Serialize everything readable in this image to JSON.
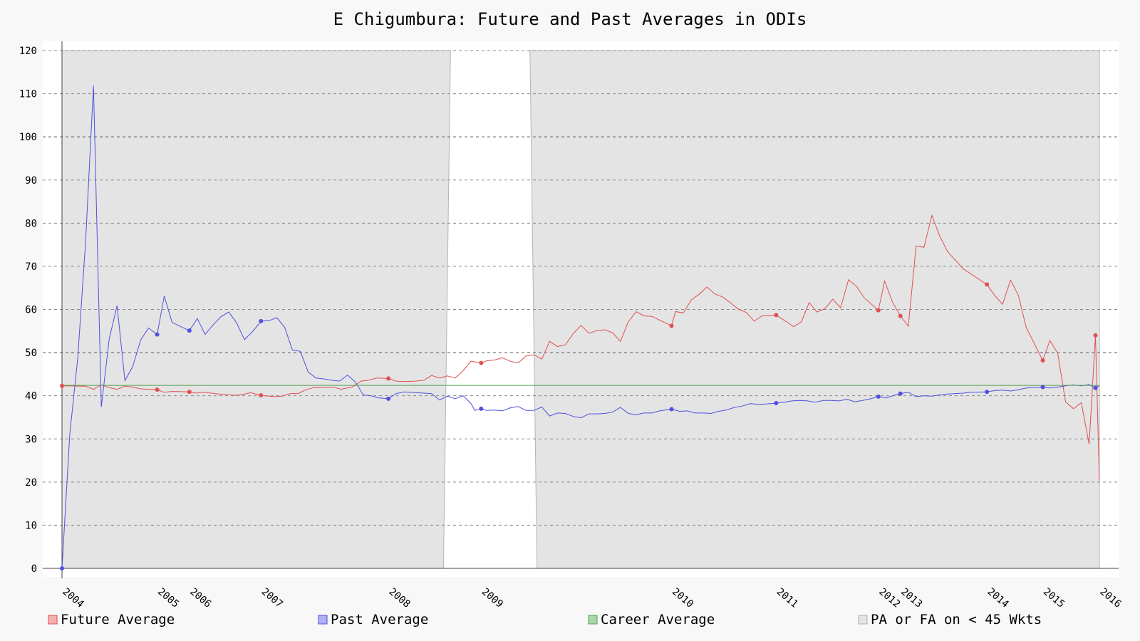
{
  "chart_data": {
    "type": "line",
    "title": "E Chigumbura: Future and Past Averages in ODIs",
    "xlabel": "",
    "ylabel": "",
    "ylim": [
      0,
      120
    ],
    "yticks": [
      0,
      10,
      20,
      30,
      40,
      50,
      60,
      70,
      80,
      90,
      100,
      110,
      120
    ],
    "grid": true,
    "legend_position": "bottom",
    "x_ticks": [
      {
        "label": "2004",
        "x": 2004.0
      },
      {
        "label": "2005",
        "x": 2005.21
      },
      {
        "label": "2006",
        "x": 2005.62
      },
      {
        "label": "2007",
        "x": 2006.53
      },
      {
        "label": "2008",
        "x": 2008.15
      },
      {
        "label": "2009",
        "x": 2009.33
      },
      {
        "label": "2010",
        "x": 2011.75
      },
      {
        "label": "2011",
        "x": 2013.08
      },
      {
        "label": "2012",
        "x": 2014.38
      },
      {
        "label": "2013",
        "x": 2014.66
      },
      {
        "label": "2014",
        "x": 2015.76
      },
      {
        "label": "2015",
        "x": 2016.47
      },
      {
        "label": "2016",
        "x": 2017.19
      }
    ],
    "x_range": [
      2004.0,
      2017.19
    ],
    "shaded_regions": [
      {
        "x0": 2004.0,
        "x1": 2008.94,
        "x1_bottom": 2008.85
      },
      {
        "x0": 2009.95,
        "x0_bottom": 2010.04,
        "x1": 2017.19
      }
    ],
    "series": [
      {
        "name": "Future Average",
        "color": "#e05050",
        "points": [
          [
            2004.0,
            42.3
          ],
          [
            2004.3,
            42.2
          ],
          [
            2004.4,
            41.5
          ],
          [
            2004.5,
            42.5
          ],
          [
            2004.6,
            41.9
          ],
          [
            2004.7,
            41.5
          ],
          [
            2004.8,
            42.2
          ],
          [
            2004.9,
            42.0
          ],
          [
            2005.0,
            41.6
          ],
          [
            2005.21,
            41.4
          ],
          [
            2005.3,
            40.8
          ],
          [
            2005.4,
            41.0
          ],
          [
            2005.62,
            40.9
          ],
          [
            2005.7,
            40.6
          ],
          [
            2005.8,
            40.8
          ],
          [
            2006.0,
            40.4
          ],
          [
            2006.2,
            40.1
          ],
          [
            2006.3,
            40.3
          ],
          [
            2006.4,
            40.7
          ],
          [
            2006.53,
            40.1
          ],
          [
            2006.7,
            39.8
          ],
          [
            2006.8,
            39.9
          ],
          [
            2006.9,
            40.5
          ],
          [
            2007.0,
            40.5
          ],
          [
            2007.1,
            41.4
          ],
          [
            2007.2,
            41.9
          ],
          [
            2007.3,
            41.9
          ],
          [
            2007.45,
            42.0
          ],
          [
            2007.55,
            41.5
          ],
          [
            2007.7,
            42.1
          ],
          [
            2007.8,
            43.4
          ],
          [
            2007.9,
            43.6
          ],
          [
            2008.0,
            44.1
          ],
          [
            2008.15,
            44.0
          ],
          [
            2008.25,
            43.4
          ],
          [
            2008.35,
            43.3
          ],
          [
            2008.5,
            43.4
          ],
          [
            2008.6,
            43.6
          ],
          [
            2008.7,
            44.7
          ],
          [
            2008.8,
            44.1
          ],
          [
            2008.9,
            44.6
          ],
          [
            2009.0,
            44.1
          ],
          [
            2009.1,
            45.8
          ],
          [
            2009.2,
            48.0
          ],
          [
            2009.33,
            47.6
          ],
          [
            2009.4,
            48.1
          ],
          [
            2009.5,
            48.3
          ],
          [
            2009.6,
            48.8
          ],
          [
            2009.7,
            48.0
          ],
          [
            2009.8,
            47.6
          ],
          [
            2009.9,
            49.2
          ],
          [
            2010.0,
            49.5
          ],
          [
            2010.1,
            48.5
          ],
          [
            2010.2,
            52.6
          ],
          [
            2010.3,
            51.4
          ],
          [
            2010.4,
            51.8
          ],
          [
            2010.5,
            54.4
          ],
          [
            2010.6,
            56.3
          ],
          [
            2010.7,
            54.5
          ],
          [
            2010.8,
            55.1
          ],
          [
            2010.9,
            55.3
          ],
          [
            2011.0,
            54.6
          ],
          [
            2011.1,
            52.6
          ],
          [
            2011.2,
            57.1
          ],
          [
            2011.3,
            59.5
          ],
          [
            2011.4,
            58.5
          ],
          [
            2011.5,
            58.4
          ],
          [
            2011.6,
            57.5
          ],
          [
            2011.75,
            56.2
          ],
          [
            2011.8,
            59.5
          ],
          [
            2011.9,
            59.2
          ],
          [
            2012.0,
            62.2
          ],
          [
            2012.1,
            63.5
          ],
          [
            2012.2,
            65.2
          ],
          [
            2012.3,
            63.6
          ],
          [
            2012.4,
            62.9
          ],
          [
            2012.5,
            61.5
          ],
          [
            2012.6,
            60.1
          ],
          [
            2012.7,
            59.3
          ],
          [
            2012.8,
            57.3
          ],
          [
            2012.9,
            58.5
          ],
          [
            2013.08,
            58.7
          ],
          [
            2013.2,
            57.3
          ],
          [
            2013.3,
            56.0
          ],
          [
            2013.4,
            57.1
          ],
          [
            2013.5,
            61.6
          ],
          [
            2013.6,
            59.4
          ],
          [
            2013.7,
            60.2
          ],
          [
            2013.8,
            62.4
          ],
          [
            2013.9,
            60.4
          ],
          [
            2014.0,
            66.9
          ],
          [
            2014.1,
            65.4
          ],
          [
            2014.2,
            62.7
          ],
          [
            2014.38,
            59.8
          ],
          [
            2014.46,
            66.6
          ],
          [
            2014.56,
            61.7
          ],
          [
            2014.66,
            58.5
          ],
          [
            2014.76,
            56.1
          ],
          [
            2014.86,
            74.7
          ],
          [
            2014.96,
            74.4
          ],
          [
            2015.06,
            81.8
          ],
          [
            2015.16,
            77.0
          ],
          [
            2015.26,
            73.4
          ],
          [
            2015.46,
            69.4
          ],
          [
            2015.76,
            65.8
          ],
          [
            2015.86,
            63.2
          ],
          [
            2015.96,
            61.2
          ],
          [
            2016.06,
            66.8
          ],
          [
            2016.16,
            63.3
          ],
          [
            2016.26,
            55.8
          ],
          [
            2016.47,
            48.2
          ],
          [
            2016.56,
            52.8
          ],
          [
            2016.66,
            49.9
          ],
          [
            2016.76,
            38.6
          ],
          [
            2016.86,
            37.0
          ],
          [
            2016.96,
            38.4
          ],
          [
            2017.06,
            28.8
          ],
          [
            2017.14,
            54.0
          ],
          [
            2017.19,
            20.3
          ]
        ],
        "markers": [
          [
            2004.0,
            42.3
          ],
          [
            2005.21,
            41.4
          ],
          [
            2005.62,
            40.9
          ],
          [
            2006.53,
            40.1
          ],
          [
            2008.15,
            44.0
          ],
          [
            2009.33,
            47.6
          ],
          [
            2011.75,
            56.2
          ],
          [
            2013.08,
            58.7
          ],
          [
            2014.38,
            59.8
          ],
          [
            2014.66,
            58.5
          ],
          [
            2015.76,
            65.8
          ],
          [
            2016.47,
            48.2
          ],
          [
            2017.14,
            54.0
          ]
        ]
      },
      {
        "name": "Past Average",
        "color": "#5050e0",
        "points": [
          [
            2004.0,
            0.0
          ],
          [
            2004.1,
            31.2
          ],
          [
            2004.2,
            48.7
          ],
          [
            2004.3,
            75.6
          ],
          [
            2004.4,
            111.9
          ],
          [
            2004.5,
            37.4
          ],
          [
            2004.6,
            53.1
          ],
          [
            2004.7,
            60.9
          ],
          [
            2004.8,
            43.5
          ],
          [
            2004.9,
            46.8
          ],
          [
            2005.0,
            52.9
          ],
          [
            2005.1,
            55.7
          ],
          [
            2005.21,
            54.2
          ],
          [
            2005.3,
            63.1
          ],
          [
            2005.4,
            57.0
          ],
          [
            2005.5,
            56.1
          ],
          [
            2005.62,
            55.1
          ],
          [
            2005.72,
            57.9
          ],
          [
            2005.82,
            54.2
          ],
          [
            2005.92,
            56.4
          ],
          [
            2006.02,
            58.3
          ],
          [
            2006.12,
            59.4
          ],
          [
            2006.22,
            56.9
          ],
          [
            2006.32,
            53.0
          ],
          [
            2006.42,
            54.8
          ],
          [
            2006.53,
            57.3
          ],
          [
            2006.63,
            57.4
          ],
          [
            2006.73,
            58.1
          ],
          [
            2006.83,
            55.9
          ],
          [
            2006.93,
            50.6
          ],
          [
            2007.03,
            50.3
          ],
          [
            2007.13,
            45.5
          ],
          [
            2007.23,
            44.1
          ],
          [
            2007.33,
            43.9
          ],
          [
            2007.43,
            43.6
          ],
          [
            2007.53,
            43.4
          ],
          [
            2007.63,
            44.8
          ],
          [
            2007.73,
            43.2
          ],
          [
            2007.83,
            40.2
          ],
          [
            2007.93,
            40.0
          ],
          [
            2008.03,
            39.5
          ],
          [
            2008.15,
            39.3
          ],
          [
            2008.25,
            40.5
          ],
          [
            2008.35,
            40.9
          ],
          [
            2008.5,
            40.7
          ],
          [
            2008.7,
            40.5
          ],
          [
            2008.8,
            39.0
          ],
          [
            2008.9,
            39.9
          ],
          [
            2009.0,
            39.3
          ],
          [
            2009.1,
            40.0
          ],
          [
            2009.2,
            38.2
          ],
          [
            2009.25,
            36.6
          ],
          [
            2009.33,
            37.0
          ],
          [
            2009.4,
            36.6
          ],
          [
            2009.5,
            36.7
          ],
          [
            2009.6,
            36.5
          ],
          [
            2009.7,
            37.2
          ],
          [
            2009.8,
            37.5
          ],
          [
            2009.9,
            36.6
          ],
          [
            2010.0,
            36.6
          ],
          [
            2010.1,
            37.4
          ],
          [
            2010.2,
            35.3
          ],
          [
            2010.3,
            36.0
          ],
          [
            2010.4,
            35.9
          ],
          [
            2010.5,
            35.2
          ],
          [
            2010.6,
            34.9
          ],
          [
            2010.7,
            35.8
          ],
          [
            2010.8,
            35.8
          ],
          [
            2010.9,
            35.9
          ],
          [
            2011.0,
            36.2
          ],
          [
            2011.1,
            37.3
          ],
          [
            2011.2,
            35.9
          ],
          [
            2011.3,
            35.6
          ],
          [
            2011.4,
            36.0
          ],
          [
            2011.5,
            36.0
          ],
          [
            2011.6,
            36.5
          ],
          [
            2011.75,
            36.9
          ],
          [
            2011.85,
            36.4
          ],
          [
            2011.95,
            36.5
          ],
          [
            2012.05,
            36.0
          ],
          [
            2012.15,
            36.0
          ],
          [
            2012.25,
            35.9
          ],
          [
            2012.35,
            36.4
          ],
          [
            2012.45,
            36.7
          ],
          [
            2012.55,
            37.3
          ],
          [
            2012.65,
            37.6
          ],
          [
            2012.75,
            38.2
          ],
          [
            2012.85,
            38.0
          ],
          [
            2012.95,
            38.1
          ],
          [
            2013.08,
            38.3
          ],
          [
            2013.18,
            38.5
          ],
          [
            2013.28,
            38.8
          ],
          [
            2013.38,
            38.9
          ],
          [
            2013.48,
            38.8
          ],
          [
            2013.58,
            38.5
          ],
          [
            2013.68,
            38.9
          ],
          [
            2013.78,
            38.9
          ],
          [
            2013.88,
            38.8
          ],
          [
            2013.98,
            39.2
          ],
          [
            2014.08,
            38.6
          ],
          [
            2014.18,
            38.9
          ],
          [
            2014.28,
            39.3
          ],
          [
            2014.38,
            39.8
          ],
          [
            2014.48,
            39.5
          ],
          [
            2014.58,
            40.1
          ],
          [
            2014.66,
            40.5
          ],
          [
            2014.76,
            40.8
          ],
          [
            2014.86,
            39.8
          ],
          [
            2014.96,
            40.0
          ],
          [
            2015.06,
            39.9
          ],
          [
            2015.16,
            40.2
          ],
          [
            2015.26,
            40.4
          ],
          [
            2015.46,
            40.6
          ],
          [
            2015.56,
            40.8
          ],
          [
            2015.76,
            40.9
          ],
          [
            2015.86,
            41.2
          ],
          [
            2015.96,
            41.3
          ],
          [
            2016.06,
            41.1
          ],
          [
            2016.16,
            41.4
          ],
          [
            2016.26,
            41.8
          ],
          [
            2016.47,
            42.0
          ],
          [
            2016.56,
            41.8
          ],
          [
            2016.66,
            42.0
          ],
          [
            2016.76,
            42.3
          ],
          [
            2016.86,
            42.5
          ],
          [
            2016.96,
            42.3
          ],
          [
            2017.06,
            42.6
          ],
          [
            2017.14,
            41.8
          ],
          [
            2017.19,
            42.3
          ]
        ],
        "markers": [
          [
            2004.0,
            0.0
          ],
          [
            2005.21,
            54.2
          ],
          [
            2005.62,
            55.1
          ],
          [
            2006.53,
            57.3
          ],
          [
            2008.15,
            39.3
          ],
          [
            2009.33,
            37.0
          ],
          [
            2011.75,
            36.9
          ],
          [
            2013.08,
            38.3
          ],
          [
            2014.38,
            39.8
          ],
          [
            2014.66,
            40.5
          ],
          [
            2015.76,
            40.9
          ],
          [
            2016.47,
            42.0
          ],
          [
            2017.14,
            41.8
          ]
        ]
      },
      {
        "name": "Career Average",
        "color": "#50a050",
        "value": 42.4
      }
    ],
    "legend": [
      {
        "name": "Future Average",
        "fill": "#f4b0b0",
        "stroke": "#e05050"
      },
      {
        "name": "Past Average",
        "fill": "#b0b0f4",
        "stroke": "#5050e0"
      },
      {
        "name": "Career Average",
        "fill": "#a8d8a8",
        "stroke": "#50a050"
      },
      {
        "name": "PA or FA on < 45 Wkts",
        "fill": "#e4e4e4",
        "stroke": "#b0b0b0"
      }
    ]
  }
}
